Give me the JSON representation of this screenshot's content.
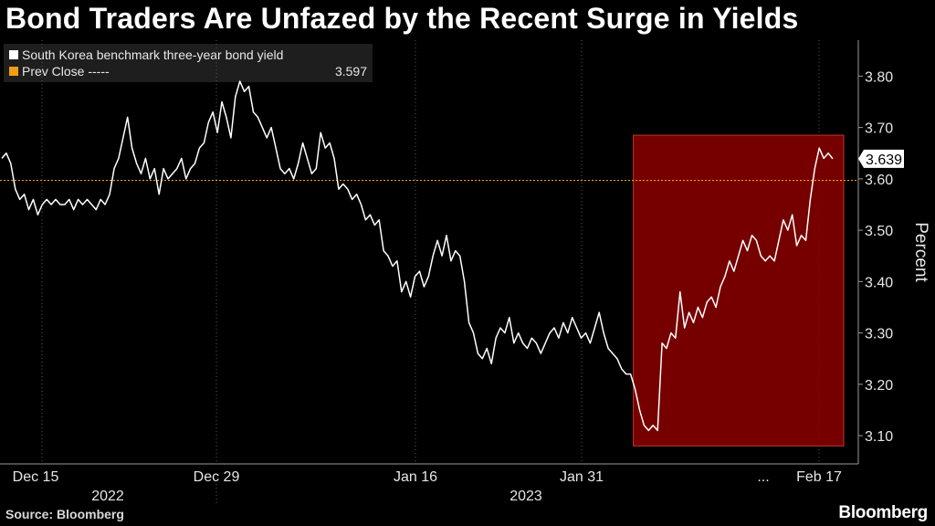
{
  "title": "Bond Traders Are Unfazed by the Recent Surge in Yields",
  "legend": {
    "items": [
      {
        "label": "South Korea benchmark three-year bond yield",
        "color": "#ffffff"
      },
      {
        "label": "Prev Close -----",
        "value": "3.597",
        "color": "#f39c12"
      }
    ]
  },
  "source": "Source: Bloomberg",
  "brand": "Bloomberg",
  "colors": {
    "background": "#000000",
    "line": "#ffffff",
    "prev_close": "#f39c12",
    "highlight": "#8b0000"
  },
  "chart_data": {
    "type": "line",
    "title": "Bond Traders Are Unfazed by the Recent Surge in Yields",
    "ylabel": "Percent",
    "ylim": [
      3.045,
      3.87
    ],
    "y_ticks": [
      "3.80",
      "3.70",
      "3.60",
      "3.50",
      "3.40",
      "3.30",
      "3.20",
      "3.10"
    ],
    "x_ticks": [
      "Dec 15",
      "Dec 29",
      "Jan 16",
      "Jan 31",
      "...",
      "Feb 17"
    ],
    "year_labels": [
      "2022",
      "2023"
    ],
    "grid": "vertical",
    "series": [
      {
        "name": "South Korea benchmark three-year bond yield",
        "last_value": "3.639",
        "values": [
          3.64,
          3.65,
          3.63,
          3.58,
          3.56,
          3.57,
          3.54,
          3.56,
          3.53,
          3.55,
          3.56,
          3.55,
          3.56,
          3.55,
          3.55,
          3.56,
          3.54,
          3.56,
          3.55,
          3.56,
          3.55,
          3.54,
          3.56,
          3.55,
          3.57,
          3.62,
          3.64,
          3.68,
          3.72,
          3.66,
          3.63,
          3.61,
          3.64,
          3.6,
          3.62,
          3.57,
          3.62,
          3.6,
          3.61,
          3.62,
          3.64,
          3.6,
          3.62,
          3.63,
          3.66,
          3.67,
          3.71,
          3.73,
          3.69,
          3.75,
          3.72,
          3.68,
          3.76,
          3.79,
          3.77,
          3.78,
          3.73,
          3.72,
          3.7,
          3.68,
          3.7,
          3.66,
          3.62,
          3.61,
          3.62,
          3.6,
          3.63,
          3.67,
          3.64,
          3.61,
          3.62,
          3.69,
          3.66,
          3.67,
          3.64,
          3.58,
          3.59,
          3.58,
          3.56,
          3.57,
          3.55,
          3.52,
          3.53,
          3.51,
          3.52,
          3.46,
          3.45,
          3.43,
          3.44,
          3.38,
          3.4,
          3.37,
          3.41,
          3.42,
          3.39,
          3.41,
          3.45,
          3.48,
          3.45,
          3.49,
          3.44,
          3.46,
          3.45,
          3.4,
          3.32,
          3.3,
          3.26,
          3.25,
          3.27,
          3.24,
          3.29,
          3.31,
          3.3,
          3.33,
          3.28,
          3.3,
          3.28,
          3.27,
          3.29,
          3.28,
          3.26,
          3.28,
          3.3,
          3.31,
          3.29,
          3.32,
          3.3,
          3.33,
          3.31,
          3.29,
          3.3,
          3.28,
          3.31,
          3.34,
          3.3,
          3.27,
          3.26,
          3.25,
          3.23,
          3.22,
          3.22,
          3.19,
          3.15,
          3.12,
          3.11,
          3.12,
          3.11,
          3.28,
          3.27,
          3.3,
          3.29,
          3.38,
          3.31,
          3.34,
          3.32,
          3.35,
          3.33,
          3.36,
          3.37,
          3.35,
          3.39,
          3.41,
          3.44,
          3.42,
          3.45,
          3.48,
          3.46,
          3.49,
          3.48,
          3.45,
          3.44,
          3.45,
          3.44,
          3.48,
          3.52,
          3.5,
          3.53,
          3.47,
          3.49,
          3.48,
          3.56,
          3.62,
          3.66,
          3.64,
          3.65,
          3.639
        ]
      }
    ],
    "reference_lines": [
      {
        "name": "Prev Close",
        "value": 3.597
      }
    ],
    "highlight_region": {
      "from_index": 141,
      "to_index": 181,
      "ymin": 3.08,
      "ymax": 3.685
    }
  }
}
